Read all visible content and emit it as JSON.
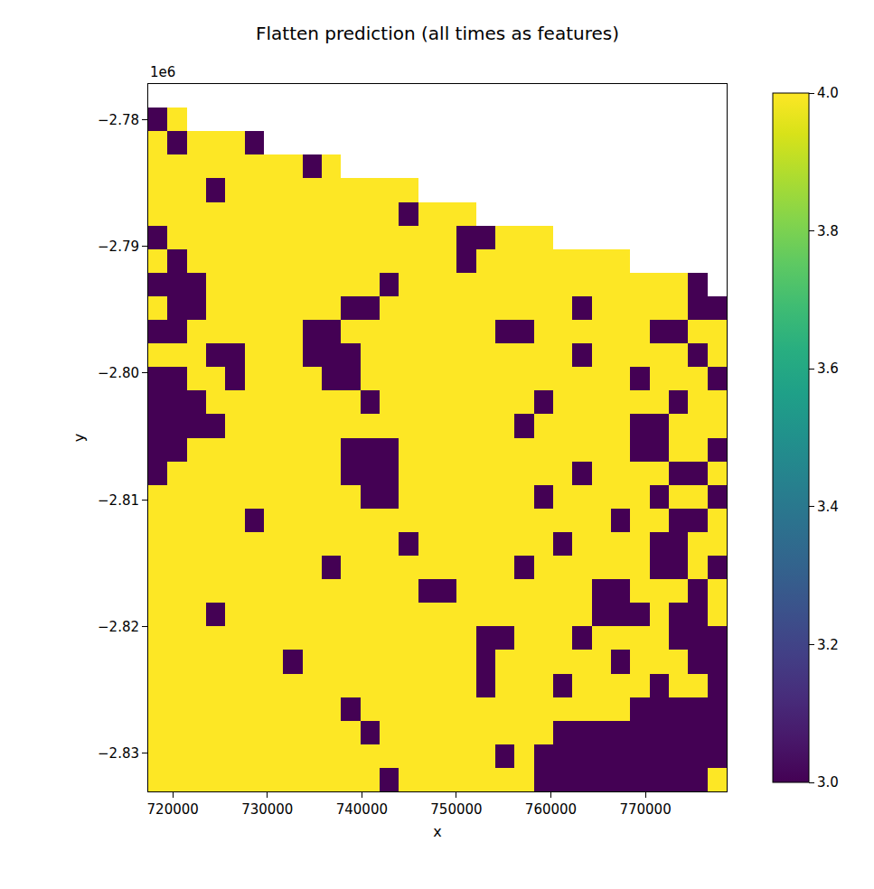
{
  "chart_data": {
    "type": "heatmap",
    "title": "Flatten prediction (all times as features)",
    "x_label": "x",
    "y_label": "y",
    "xlim": [
      717400,
      778600
    ],
    "ylim": [
      -2833000,
      -2777200
    ],
    "xticks": [
      720000,
      730000,
      740000,
      750000,
      760000,
      770000
    ],
    "yticks": [
      {
        "value": -2830000,
        "label": "−2.83"
      },
      {
        "value": -2820000,
        "label": "−2.82"
      },
      {
        "value": -2810000,
        "label": "−2.81"
      },
      {
        "value": -2800000,
        "label": "−2.80"
      },
      {
        "value": -2790000,
        "label": "−2.79"
      },
      {
        "value": -2780000,
        "label": "−2.78"
      }
    ],
    "annotations": [
      {
        "text": "1e6"
      }
    ],
    "colorbar": {
      "range": [
        3,
        4
      ],
      "ticks": [
        {
          "value": 3,
          "label": "3.0"
        },
        {
          "value": 3.2,
          "label": "3.2"
        },
        {
          "value": 3.4,
          "label": "3.4"
        },
        {
          "value": 3.6,
          "label": "3.6"
        },
        {
          "value": 3.8,
          "label": "3.8"
        },
        {
          "value": 4,
          "label": "4.0"
        }
      ]
    },
    "x": [
      718420,
      720460,
      722500,
      724540,
      726580,
      728620,
      730660,
      732700,
      734740,
      736780,
      738820,
      740860,
      742900,
      744940,
      746980,
      749020,
      751060,
      753100,
      755140,
      757180,
      759220,
      761260,
      763300,
      765340,
      767380,
      769420,
      771460,
      773500,
      775540,
      777580
    ],
    "y": [
      -2778130,
      -2779990,
      -2781850,
      -2783710,
      -2785570,
      -2787430,
      -2789290,
      -2791150,
      -2793010,
      -2794870,
      -2796730,
      -2798590,
      -2800450,
      -2802310,
      -2804170,
      -2806030,
      -2807890,
      -2809750,
      -2811610,
      -2813470,
      -2815330,
      -2817190,
      -2819050,
      -2820910,
      -2822770,
      -2824630,
      -2826490,
      -2828350,
      -2830210,
      -2832070
    ],
    "z": [
      [
        null,
        null,
        null,
        null,
        null,
        null,
        null,
        null,
        null,
        null,
        null,
        null,
        null,
        null,
        null,
        null,
        null,
        null,
        null,
        null,
        null,
        null,
        null,
        null,
        null,
        null,
        null,
        null,
        null,
        null
      ],
      [
        3,
        4,
        null,
        null,
        null,
        null,
        null,
        null,
        null,
        null,
        null,
        null,
        null,
        null,
        null,
        null,
        null,
        null,
        null,
        null,
        null,
        null,
        null,
        null,
        null,
        null,
        null,
        null,
        null,
        null
      ],
      [
        4,
        3,
        4,
        4,
        4,
        3,
        null,
        null,
        null,
        null,
        null,
        null,
        null,
        null,
        null,
        null,
        null,
        null,
        null,
        null,
        null,
        null,
        null,
        null,
        null,
        null,
        null,
        null,
        null,
        null
      ],
      [
        4,
        4,
        4,
        4,
        4,
        4,
        4,
        4,
        3,
        4,
        null,
        null,
        null,
        null,
        null,
        null,
        null,
        null,
        null,
        null,
        null,
        null,
        null,
        null,
        null,
        null,
        null,
        null,
        null,
        null
      ],
      [
        4,
        4,
        4,
        3,
        4,
        4,
        4,
        4,
        4,
        4,
        4,
        4,
        4,
        4,
        null,
        null,
        null,
        null,
        null,
        null,
        null,
        null,
        null,
        null,
        null,
        null,
        null,
        null,
        null,
        null
      ],
      [
        4,
        4,
        4,
        4,
        4,
        4,
        4,
        4,
        4,
        4,
        4,
        4,
        4,
        3,
        4,
        4,
        4,
        null,
        null,
        null,
        null,
        null,
        null,
        null,
        null,
        null,
        null,
        null,
        null,
        null
      ],
      [
        3,
        4,
        4,
        4,
        4,
        4,
        4,
        4,
        4,
        4,
        4,
        4,
        4,
        4,
        4,
        4,
        3,
        3,
        4,
        4,
        4,
        null,
        null,
        null,
        null,
        null,
        null,
        null,
        null,
        null
      ],
      [
        4,
        3,
        4,
        4,
        4,
        4,
        4,
        4,
        4,
        4,
        4,
        4,
        4,
        4,
        4,
        4,
        3,
        4,
        4,
        4,
        4,
        4,
        4,
        4,
        4,
        null,
        null,
        null,
        null,
        null
      ],
      [
        3,
        3,
        3,
        4,
        4,
        4,
        4,
        4,
        4,
        4,
        4,
        4,
        3,
        4,
        4,
        4,
        4,
        4,
        4,
        4,
        4,
        4,
        4,
        4,
        4,
        4,
        4,
        4,
        3,
        null
      ],
      [
        4,
        3,
        3,
        4,
        4,
        4,
        4,
        4,
        4,
        4,
        3,
        3,
        4,
        4,
        4,
        4,
        4,
        4,
        4,
        4,
        4,
        4,
        3,
        4,
        4,
        4,
        4,
        4,
        3,
        3
      ],
      [
        3,
        3,
        4,
        4,
        4,
        4,
        4,
        4,
        3,
        3,
        4,
        4,
        4,
        4,
        4,
        4,
        4,
        4,
        3,
        3,
        4,
        4,
        4,
        4,
        4,
        4,
        3,
        3,
        4,
        4
      ],
      [
        4,
        4,
        4,
        3,
        3,
        4,
        4,
        4,
        3,
        3,
        3,
        4,
        4,
        4,
        4,
        4,
        4,
        4,
        4,
        4,
        4,
        4,
        3,
        4,
        4,
        4,
        4,
        4,
        3,
        4
      ],
      [
        3,
        3,
        4,
        4,
        3,
        4,
        4,
        4,
        4,
        3,
        3,
        4,
        4,
        4,
        4,
        4,
        4,
        4,
        4,
        4,
        4,
        4,
        4,
        4,
        4,
        3,
        4,
        4,
        4,
        3
      ],
      [
        3,
        3,
        3,
        4,
        4,
        4,
        4,
        4,
        4,
        4,
        4,
        3,
        4,
        4,
        4,
        4,
        4,
        4,
        4,
        4,
        3,
        4,
        4,
        4,
        4,
        4,
        4,
        3,
        4,
        4
      ],
      [
        3,
        3,
        3,
        3,
        4,
        4,
        4,
        4,
        4,
        4,
        4,
        4,
        4,
        4,
        4,
        4,
        4,
        4,
        4,
        3,
        4,
        4,
        4,
        4,
        4,
        3,
        3,
        4,
        4,
        4
      ],
      [
        3,
        3,
        4,
        4,
        4,
        4,
        4,
        4,
        4,
        4,
        3,
        3,
        3,
        4,
        4,
        4,
        4,
        4,
        4,
        4,
        4,
        4,
        4,
        4,
        4,
        3,
        3,
        4,
        4,
        3
      ],
      [
        3,
        4,
        4,
        4,
        4,
        4,
        4,
        4,
        4,
        4,
        3,
        3,
        3,
        4,
        4,
        4,
        4,
        4,
        4,
        4,
        4,
        4,
        3,
        4,
        4,
        4,
        4,
        3,
        3,
        4
      ],
      [
        4,
        4,
        4,
        4,
        4,
        4,
        4,
        4,
        4,
        4,
        4,
        3,
        3,
        4,
        4,
        4,
        4,
        4,
        4,
        4,
        3,
        4,
        4,
        4,
        4,
        4,
        3,
        4,
        4,
        3
      ],
      [
        4,
        4,
        4,
        4,
        4,
        3,
        4,
        4,
        4,
        4,
        4,
        4,
        4,
        4,
        4,
        4,
        4,
        4,
        4,
        4,
        4,
        4,
        4,
        4,
        3,
        4,
        4,
        3,
        3,
        4
      ],
      [
        4,
        4,
        4,
        4,
        4,
        4,
        4,
        4,
        4,
        4,
        4,
        4,
        4,
        3,
        4,
        4,
        4,
        4,
        4,
        4,
        4,
        3,
        4,
        4,
        4,
        4,
        3,
        3,
        4,
        4
      ],
      [
        4,
        4,
        4,
        4,
        4,
        4,
        4,
        4,
        4,
        3,
        4,
        4,
        4,
        4,
        4,
        4,
        4,
        4,
        4,
        3,
        4,
        4,
        4,
        4,
        4,
        4,
        3,
        3,
        4,
        3
      ],
      [
        4,
        4,
        4,
        4,
        4,
        4,
        4,
        4,
        4,
        4,
        4,
        4,
        4,
        4,
        3,
        3,
        4,
        4,
        4,
        4,
        4,
        4,
        4,
        3,
        3,
        4,
        4,
        4,
        3,
        4
      ],
      [
        4,
        4,
        4,
        3,
        4,
        4,
        4,
        4,
        4,
        4,
        4,
        4,
        4,
        4,
        4,
        4,
        4,
        4,
        4,
        4,
        4,
        4,
        4,
        3,
        3,
        3,
        4,
        3,
        3,
        4
      ],
      [
        4,
        4,
        4,
        4,
        4,
        4,
        4,
        4,
        4,
        4,
        4,
        4,
        4,
        4,
        4,
        4,
        4,
        3,
        3,
        4,
        4,
        4,
        3,
        4,
        4,
        4,
        4,
        3,
        3,
        3
      ],
      [
        4,
        4,
        4,
        4,
        4,
        4,
        4,
        3,
        4,
        4,
        4,
        4,
        4,
        4,
        4,
        4,
        4,
        3,
        4,
        4,
        4,
        4,
        4,
        4,
        3,
        4,
        4,
        4,
        3,
        3
      ],
      [
        4,
        4,
        4,
        4,
        4,
        4,
        4,
        4,
        4,
        4,
        4,
        4,
        4,
        4,
        4,
        4,
        4,
        3,
        4,
        4,
        4,
        3,
        4,
        4,
        4,
        4,
        3,
        4,
        4,
        3
      ],
      [
        4,
        4,
        4,
        4,
        4,
        4,
        4,
        4,
        4,
        4,
        3,
        4,
        4,
        4,
        4,
        4,
        4,
        4,
        4,
        4,
        4,
        4,
        4,
        4,
        4,
        3,
        3,
        3,
        3,
        3
      ],
      [
        4,
        4,
        4,
        4,
        4,
        4,
        4,
        4,
        4,
        4,
        4,
        3,
        4,
        4,
        4,
        4,
        4,
        4,
        4,
        4,
        4,
        3,
        3,
        3,
        3,
        3,
        3,
        3,
        3,
        3
      ],
      [
        4,
        4,
        4,
        4,
        4,
        4,
        4,
        4,
        4,
        4,
        4,
        4,
        4,
        4,
        4,
        4,
        4,
        4,
        3,
        4,
        3,
        3,
        3,
        3,
        3,
        3,
        3,
        3,
        3,
        3
      ],
      [
        4,
        4,
        4,
        4,
        4,
        4,
        4,
        4,
        4,
        4,
        4,
        4,
        3,
        4,
        4,
        4,
        4,
        4,
        4,
        4,
        3,
        3,
        3,
        3,
        3,
        3,
        3,
        3,
        3,
        4
      ]
    ]
  }
}
